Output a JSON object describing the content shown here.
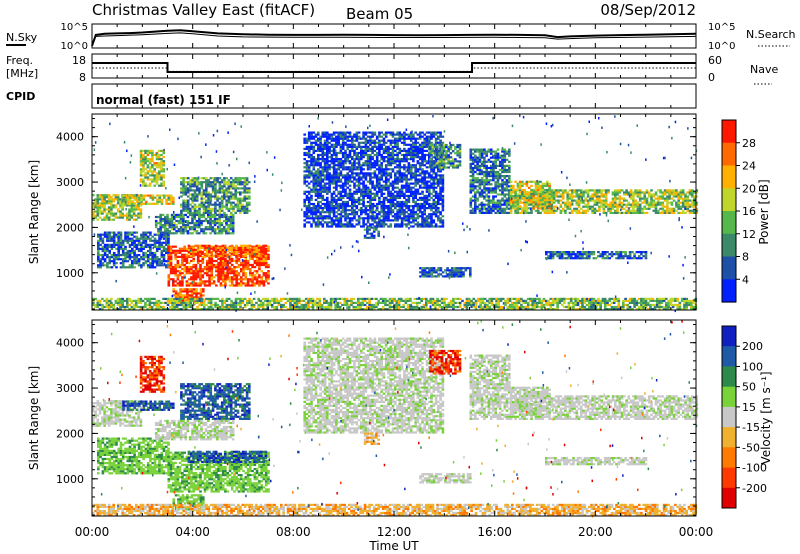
{
  "header": {
    "radar": "Christmas Valley East (fitACF)",
    "beam": "Beam 05",
    "date": "08/Sep/2012"
  },
  "chart_data": {
    "type": "heatmap",
    "x_ticks": [
      "00:00",
      "04:00",
      "08:00",
      "12:00",
      "16:00",
      "20:00",
      "00:00"
    ],
    "xlabel": "Time UT",
    "xlim_hours": [
      0,
      24
    ],
    "noise_panel": {
      "left_label": "N.Sky",
      "right_label": "N.Search",
      "left_ticks": [
        "10^5",
        "10^0"
      ],
      "right_ticks": [
        "10^5",
        "10^0"
      ],
      "sky_series": {
        "t": [
          0,
          0.15,
          0.5,
          1,
          1.5,
          2,
          2.5,
          3,
          3.5,
          4,
          5,
          6,
          7,
          8,
          9,
          10,
          11,
          12,
          13,
          14,
          15,
          16,
          17,
          18,
          18.5,
          19,
          20,
          21,
          22,
          23,
          24
        ],
        "v": [
          0.05,
          0.55,
          0.6,
          0.62,
          0.63,
          0.66,
          0.7,
          0.74,
          0.76,
          0.72,
          0.62,
          0.58,
          0.56,
          0.55,
          0.55,
          0.56,
          0.55,
          0.54,
          0.53,
          0.54,
          0.55,
          0.56,
          0.55,
          0.53,
          0.45,
          0.48,
          0.52,
          0.54,
          0.56,
          0.58,
          0.6
        ]
      },
      "search_series": {
        "t": [
          0,
          0.15,
          0.5,
          1,
          2,
          3,
          3.5,
          4,
          5,
          6,
          8,
          10,
          12,
          14,
          16,
          18,
          18.5,
          19,
          20,
          22,
          24
        ],
        "v": [
          0.05,
          0.48,
          0.5,
          0.52,
          0.56,
          0.62,
          0.64,
          0.6,
          0.5,
          0.46,
          0.44,
          0.44,
          0.43,
          0.43,
          0.44,
          0.42,
          0.36,
          0.38,
          0.42,
          0.45,
          0.48
        ]
      }
    },
    "freq_panel": {
      "left_label_line1": "Freq.",
      "left_label_line2": "[MHz]",
      "right_label": "Nave",
      "left_ticks": [
        "18",
        "8"
      ],
      "right_ticks": [
        "60",
        "0"
      ],
      "freq_steps": [
        {
          "from": 0,
          "to": 3,
          "mhz": 14.5
        },
        {
          "from": 3,
          "to": 15.1,
          "mhz": 10
        },
        {
          "from": 15.1,
          "to": 24,
          "mhz": 14.5
        }
      ],
      "nave_steps": [
        {
          "from": 0,
          "to": 3,
          "nave": 24
        },
        {
          "from": 3,
          "to": 15.1,
          "nave": 14
        },
        {
          "from": 15.1,
          "to": 24,
          "nave": 24
        }
      ]
    },
    "cpid": {
      "label": "CPID",
      "text": "normal (fast) 151 IF"
    },
    "power_panel": {
      "ylabel": "Slant Range [km]",
      "y_ticks": [
        "1000",
        "2000",
        "3000",
        "4000"
      ],
      "ylim_km": [
        180,
        4500
      ],
      "colorbar_label": "Power [dB]",
      "colorbar_ticks": [
        "4",
        "8",
        "12",
        "16",
        "20",
        "24",
        "28"
      ],
      "colorbar_colors": [
        "#0020ff",
        "#1f50a8",
        "#3a8a6a",
        "#56b84a",
        "#c0d62a",
        "#ffb000",
        "#ff6a00",
        "#ff1800"
      ]
    },
    "velocity_panel": {
      "ylabel": "Slant Range [km]",
      "y_ticks": [
        "1000",
        "2000",
        "3000",
        "4000"
      ],
      "ylim_km": [
        180,
        4500
      ],
      "colorbar_label": "Velocity [m s⁻¹]",
      "colorbar_ticks": [
        "200",
        "100",
        "50",
        "15",
        "-15",
        "-50",
        "-100",
        "-200"
      ],
      "colorbar_colors": [
        "#1020c0",
        "#1f5aa8",
        "#2e8a4a",
        "#7ad23a",
        "#c8c8c8",
        "#f0b030",
        "#ff7a00",
        "#ff3a00",
        "#e00000"
      ]
    },
    "echo_regions": [
      {
        "t0": 0.0,
        "t1": 1.9,
        "r0": 2150,
        "r1": 2700,
        "pw": 0.5,
        "vel": "gray"
      },
      {
        "t0": 1.2,
        "t1": 3.2,
        "r0": 2500,
        "r1": 2700,
        "pw": 0.55,
        "vel": "blue"
      },
      {
        "t0": 1.9,
        "t1": 2.8,
        "r0": 2900,
        "r1": 3700,
        "pw": 0.55,
        "vel": "red"
      },
      {
        "t0": 0.2,
        "t1": 3.0,
        "r0": 1100,
        "r1": 1900,
        "pw": 0.2,
        "vel": "green"
      },
      {
        "t0": 3.0,
        "t1": 7.0,
        "r0": 700,
        "r1": 1600,
        "pw": 0.9,
        "vel": "green"
      },
      {
        "t0": 3.8,
        "t1": 6.9,
        "r0": 1350,
        "r1": 1600,
        "pw": 0.85,
        "vel": "blue"
      },
      {
        "t0": 3.5,
        "t1": 6.2,
        "r0": 2300,
        "r1": 3100,
        "pw": 0.35,
        "vel": "blue"
      },
      {
        "t0": 2.5,
        "t1": 5.6,
        "r0": 1850,
        "r1": 2300,
        "pw": 0.3,
        "vel": "gray"
      },
      {
        "t0": 3.2,
        "t1": 4.4,
        "r0": 300,
        "r1": 650,
        "pw": 0.85,
        "vel": "green"
      },
      {
        "t0": 8.4,
        "t1": 13.9,
        "r0": 2000,
        "r1": 4100,
        "pw": 0.12,
        "vel": "gray"
      },
      {
        "t0": 10.8,
        "t1": 11.4,
        "r0": 1750,
        "r1": 2000,
        "pw": 0.2,
        "vel": "orange"
      },
      {
        "t0": 13.4,
        "t1": 14.6,
        "r0": 3300,
        "r1": 3800,
        "pw": 0.3,
        "vel": "red"
      },
      {
        "t0": 15.0,
        "t1": 16.6,
        "r0": 2300,
        "r1": 3700,
        "pw": 0.25,
        "vel": "gray"
      },
      {
        "t0": 16.6,
        "t1": 24.0,
        "r0": 2300,
        "r1": 2800,
        "pw": 0.5,
        "vel": "gray"
      },
      {
        "t0": 16.6,
        "t1": 18.2,
        "r0": 2400,
        "r1": 3000,
        "pw": 0.55,
        "vel": "gray"
      },
      {
        "t0": 18.0,
        "t1": 22.0,
        "r0": 1300,
        "r1": 1450,
        "pw": 0.2,
        "vel": "gray"
      },
      {
        "t0": 13.0,
        "t1": 15.0,
        "r0": 900,
        "r1": 1100,
        "pw": 0.2,
        "vel": "gray"
      },
      {
        "t0": 0.0,
        "t1": 24.0,
        "r0": 180,
        "r1": 420,
        "pw": 0.45,
        "vel": "orange"
      }
    ]
  }
}
